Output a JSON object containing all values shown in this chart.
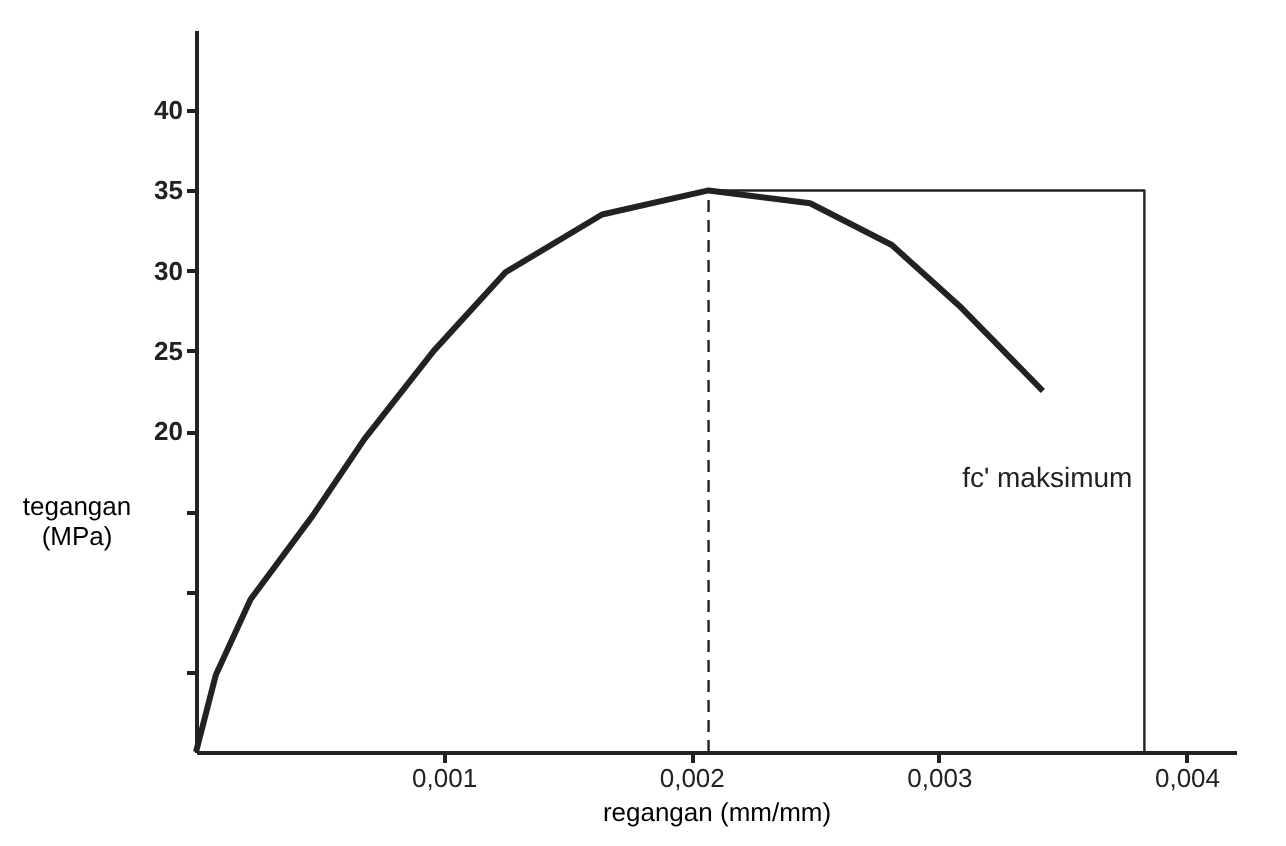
{
  "chart_data": {
    "type": "line",
    "xlabel": "regangan (mm/mm)",
    "ylabel": "tegangan\n(MPa)",
    "xlim": [
      0,
      0.0042
    ],
    "ylim": [
      0,
      45
    ],
    "xticks": [
      {
        "value": 0.001,
        "label": "0,001"
      },
      {
        "value": 0.002,
        "label": "0,002"
      },
      {
        "value": 0.003,
        "label": "0,003"
      },
      {
        "value": 0.004,
        "label": "0,004"
      }
    ],
    "yticks": [
      {
        "value": 5,
        "label": null
      },
      {
        "value": 10,
        "label": null
      },
      {
        "value": 15,
        "label": null
      },
      20,
      25,
      30,
      35,
      40
    ],
    "grid": false,
    "marker": "none",
    "series": [
      {
        "color": "#222222",
        "line_style": "solid",
        "x": [
          0,
          8e-05,
          0.00022,
          0.00047,
          0.00068,
          0.00096,
          0.00125,
          0.00164,
          0.00207,
          0.00248,
          0.00281,
          0.00309,
          0.00342
        ],
        "values": [
          0,
          4.8,
          9.5,
          14.7,
          19.5,
          25,
          29.9,
          33.5,
          35,
          34.2,
          31.6,
          27.7,
          22.5
        ]
      },
      {
        "color": "#222222",
        "line_style": "dashed",
        "x": [
          0.00207,
          0.00207
        ],
        "values": [
          0,
          35
        ]
      },
      {
        "color": "#222222",
        "line_style": "solid",
        "x": [
          0.00207,
          0.00383,
          0.00383
        ],
        "values": [
          35,
          35,
          0
        ]
      }
    ],
    "annotations": [
      {
        "text": "fc' maksimum",
        "x": 0.00383,
        "y": 17
      }
    ]
  }
}
